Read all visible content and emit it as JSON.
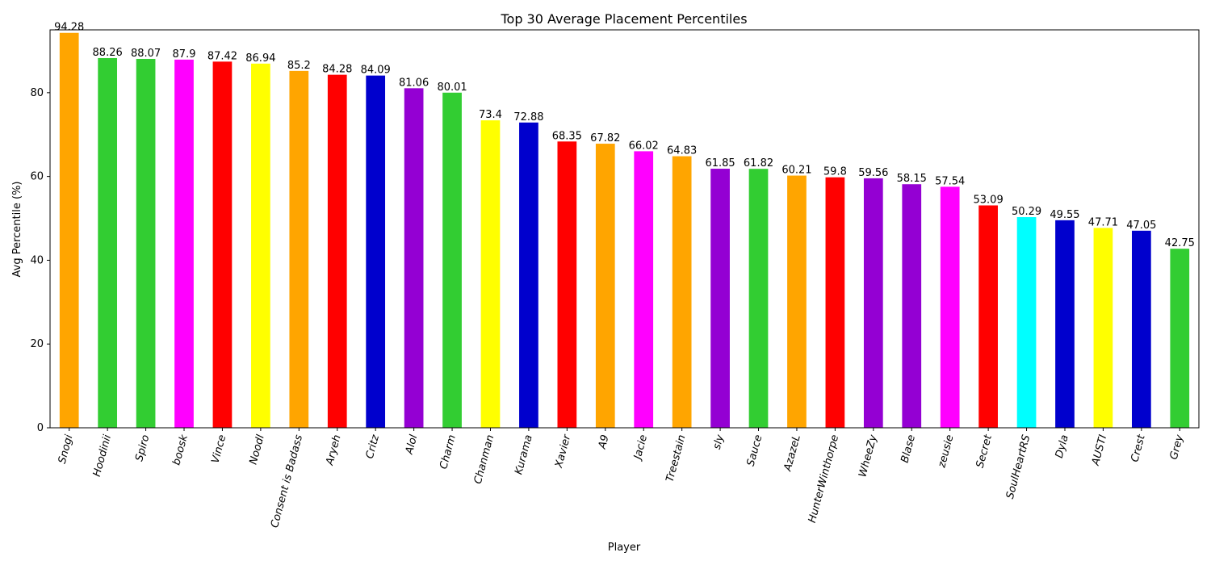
{
  "chart_data": {
    "type": "bar",
    "title": "Top 30 Average Placement Percentiles",
    "xlabel": "Player",
    "ylabel": "Avg Percentile (%)",
    "ylim": [
      0,
      95
    ],
    "yticks": [
      0,
      20,
      40,
      60,
      80
    ],
    "grid": false,
    "categories": [
      "Snogi",
      "Hoodinii",
      "Spiro",
      "boosk",
      "Vince",
      "Noodl",
      "Consent is Badass",
      "Aryeh",
      "Critz",
      "Alol",
      "Charm",
      "Chanman",
      "Kurama",
      "Xavier",
      "A9",
      "Jacie",
      "Treestain",
      "sly",
      "Sauce",
      "AzazeL",
      "HunterWinthorpe",
      "WheeZy",
      "Blase",
      "zeusie",
      "Secret",
      "SoulHeartRS",
      "Dyla",
      "AUSTI",
      "Crest",
      "Grey"
    ],
    "values": [
      94.28,
      88.26,
      88.07,
      87.9,
      87.42,
      86.94,
      85.2,
      84.28,
      84.09,
      81.06,
      80.01,
      73.4,
      72.88,
      68.35,
      67.82,
      66.02,
      64.83,
      61.85,
      61.82,
      60.21,
      59.8,
      59.56,
      58.15,
      57.54,
      53.09,
      50.29,
      49.55,
      47.71,
      47.05,
      42.75
    ],
    "data_labels": [
      "94.28",
      "88.26",
      "88.07",
      "87.9",
      "87.42",
      "86.94",
      "85.2",
      "84.28",
      "84.09",
      "81.06",
      "80.01",
      "73.4",
      "72.88",
      "68.35",
      "67.82",
      "66.02",
      "64.83",
      "61.85",
      "61.82",
      "60.21",
      "59.8",
      "59.56",
      "58.15",
      "57.54",
      "53.09",
      "50.29",
      "49.55",
      "47.71",
      "47.05",
      "42.75"
    ],
    "colors": [
      "#ffa500",
      "#32cd32",
      "#32cd32",
      "#ff00ff",
      "#ff0000",
      "#ffff00",
      "#ffa500",
      "#ff0000",
      "#0000cd",
      "#9400d3",
      "#32cd32",
      "#ffff00",
      "#0000cd",
      "#ff0000",
      "#ffa500",
      "#ff00ff",
      "#ffa500",
      "#9400d3",
      "#32cd32",
      "#ffa500",
      "#ff0000",
      "#9400d3",
      "#9400d3",
      "#ff00ff",
      "#ff0000",
      "#00ffff",
      "#0000cd",
      "#ffff00",
      "#0000cd",
      "#32cd32"
    ]
  }
}
